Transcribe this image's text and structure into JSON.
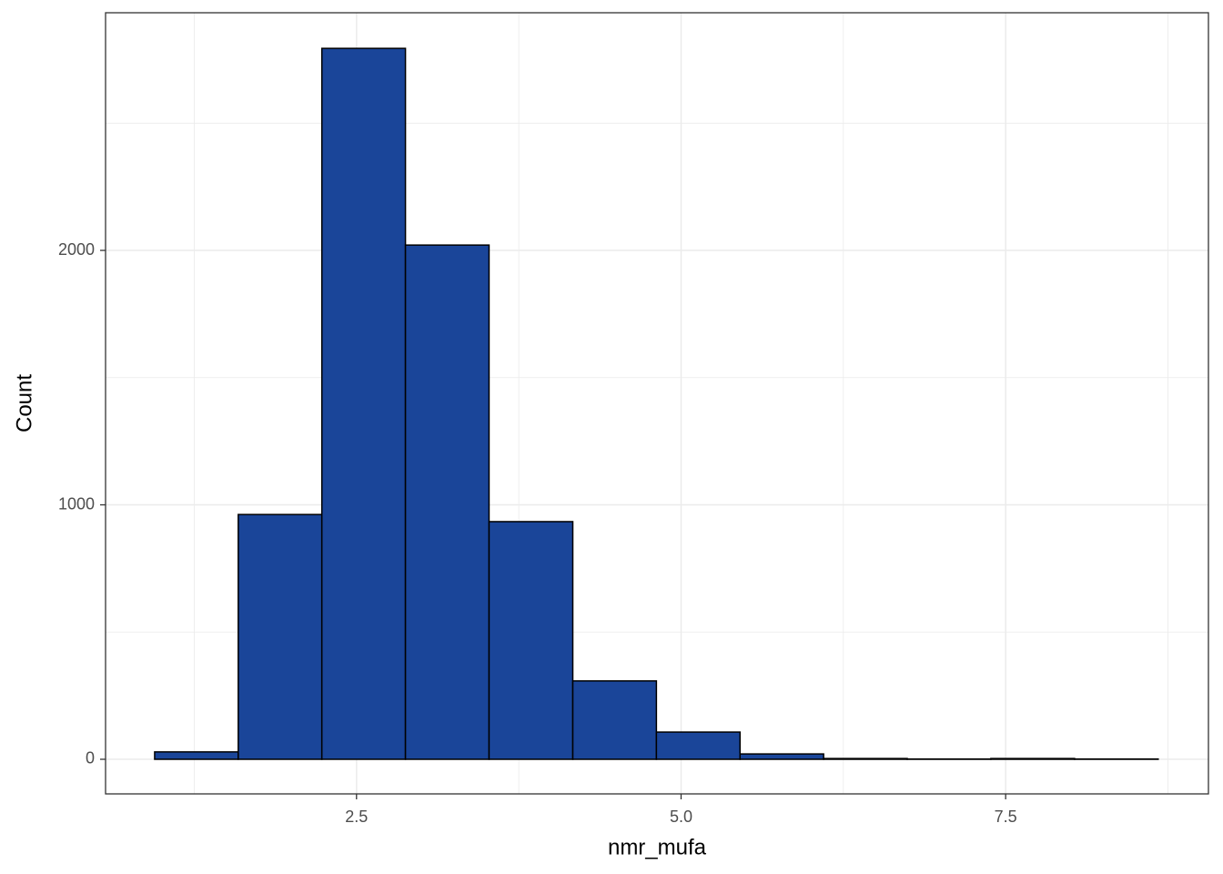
{
  "chart_data": {
    "type": "histogram",
    "x_label": "nmr_mufa",
    "y_label": "Count",
    "bins": [
      0.945,
      1.589,
      2.233,
      2.877,
      3.521,
      4.166,
      4.81,
      5.454,
      6.098,
      6.742,
      7.386,
      8.031,
      8.675
    ],
    "values": [
      29,
      962,
      2794,
      2021,
      934,
      308,
      107,
      21,
      3,
      1,
      3,
      1
    ],
    "color": "#1a4599",
    "edge_color": "#000000",
    "xlim": [
      0.567,
      9.062
    ],
    "ylim": [
      -136,
      2934
    ],
    "xticks": [
      2.5,
      {
        "value": 5,
        "label": "5.0"
      },
      7.5
    ],
    "yticks": [
      0,
      1000,
      2000
    ],
    "minor_xticks": [
      1.25,
      3.75,
      6.25,
      8.75
    ],
    "minor_yticks": [
      500,
      1500,
      2500
    ],
    "grid": true
  }
}
